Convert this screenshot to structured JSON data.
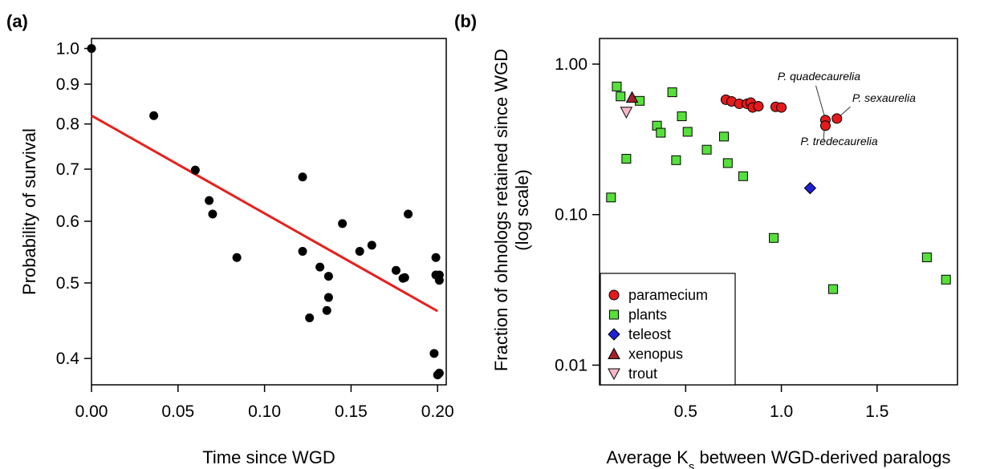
{
  "chart_data": [
    {
      "panel_label": "(a)",
      "type": "scatter",
      "xlabel": "Time since WGD",
      "ylabel": "Probability of survival",
      "xlim": [
        0.0,
        0.205
      ],
      "ylim": [
        0.37,
        1.03
      ],
      "y_scale": "log",
      "x_ticks": [
        "0.00",
        "0.05",
        "0.10",
        "0.15",
        "0.20"
      ],
      "y_ticks": [
        "0.4",
        "0.5",
        "0.6",
        "0.7",
        "0.8",
        "0.9",
        "1.0"
      ],
      "point_color": "#000000",
      "fit_line": {
        "color": "#e8201c",
        "x": [
          0.0,
          0.2
        ],
        "y": [
          0.82,
          0.46
        ]
      },
      "points": [
        {
          "x": 0.0,
          "y": 1.0
        },
        {
          "x": 0.036,
          "y": 0.82
        },
        {
          "x": 0.06,
          "y": 0.698
        },
        {
          "x": 0.068,
          "y": 0.638
        },
        {
          "x": 0.07,
          "y": 0.613
        },
        {
          "x": 0.084,
          "y": 0.539
        },
        {
          "x": 0.122,
          "y": 0.684
        },
        {
          "x": 0.122,
          "y": 0.549
        },
        {
          "x": 0.126,
          "y": 0.451
        },
        {
          "x": 0.132,
          "y": 0.524
        },
        {
          "x": 0.137,
          "y": 0.51
        },
        {
          "x": 0.137,
          "y": 0.479
        },
        {
          "x": 0.136,
          "y": 0.461
        },
        {
          "x": 0.145,
          "y": 0.596
        },
        {
          "x": 0.155,
          "y": 0.549
        },
        {
          "x": 0.162,
          "y": 0.559
        },
        {
          "x": 0.176,
          "y": 0.519
        },
        {
          "x": 0.18,
          "y": 0.507
        },
        {
          "x": 0.181,
          "y": 0.508
        },
        {
          "x": 0.183,
          "y": 0.613
        },
        {
          "x": 0.199,
          "y": 0.539
        },
        {
          "x": 0.199,
          "y": 0.512
        },
        {
          "x": 0.201,
          "y": 0.512
        },
        {
          "x": 0.201,
          "y": 0.504
        },
        {
          "x": 0.198,
          "y": 0.406
        },
        {
          "x": 0.201,
          "y": 0.383
        },
        {
          "x": 0.2,
          "y": 0.381
        }
      ]
    },
    {
      "panel_label": "(b)",
      "type": "scatter",
      "xlabel_main": "Average K",
      "xlabel_sub": "s",
      "xlabel_tail": " between WGD-derived paralogs",
      "ylabel_line1": "Fraction of ohnologs retained since WGD",
      "ylabel_line2": "(log scale)",
      "xlim": [
        0.05,
        1.92
      ],
      "ylim": [
        0.0074,
        1.48
      ],
      "y_scale": "log",
      "x_ticks": [
        "0.5",
        "1.0",
        "1.5"
      ],
      "y_ticks": [
        "0.01",
        "0.10",
        "1.00"
      ],
      "series": [
        {
          "name": "paramecium",
          "marker": "circle",
          "color": "#e41a1c",
          "points": [
            {
              "x": 0.71,
              "y": 0.58
            },
            {
              "x": 0.74,
              "y": 0.565
            },
            {
              "x": 0.78,
              "y": 0.545
            },
            {
              "x": 0.82,
              "y": 0.545
            },
            {
              "x": 0.84,
              "y": 0.555
            },
            {
              "x": 0.85,
              "y": 0.515
            },
            {
              "x": 0.88,
              "y": 0.525
            },
            {
              "x": 0.97,
              "y": 0.52
            },
            {
              "x": 1.0,
              "y": 0.515
            },
            {
              "x": 1.23,
              "y": 0.425
            },
            {
              "x": 1.23,
              "y": 0.39
            },
            {
              "x": 1.29,
              "y": 0.435
            }
          ]
        },
        {
          "name": "plants",
          "marker": "square",
          "color": "#55e03a",
          "points": [
            {
              "x": 0.11,
              "y": 0.13
            },
            {
              "x": 0.14,
              "y": 0.71
            },
            {
              "x": 0.16,
              "y": 0.61
            },
            {
              "x": 0.19,
              "y": 0.235
            },
            {
              "x": 0.26,
              "y": 0.57
            },
            {
              "x": 0.35,
              "y": 0.39
            },
            {
              "x": 0.37,
              "y": 0.35
            },
            {
              "x": 0.43,
              "y": 0.65
            },
            {
              "x": 0.45,
              "y": 0.23
            },
            {
              "x": 0.48,
              "y": 0.45
            },
            {
              "x": 0.51,
              "y": 0.355
            },
            {
              "x": 0.61,
              "y": 0.27
            },
            {
              "x": 0.7,
              "y": 0.33
            },
            {
              "x": 0.72,
              "y": 0.22
            },
            {
              "x": 0.8,
              "y": 0.18
            },
            {
              "x": 0.96,
              "y": 0.07
            },
            {
              "x": 1.27,
              "y": 0.032
            },
            {
              "x": 1.76,
              "y": 0.052
            },
            {
              "x": 1.86,
              "y": 0.037
            }
          ]
        },
        {
          "name": "teleost",
          "marker": "diamond",
          "color": "#1f1fd6",
          "points": [
            {
              "x": 1.15,
              "y": 0.15
            }
          ]
        },
        {
          "name": "xenopus",
          "marker": "triangle-up",
          "color": "#a0202a",
          "points": [
            {
              "x": 0.22,
              "y": 0.6
            }
          ]
        },
        {
          "name": "trout",
          "marker": "triangle-down",
          "color": "#f7b6c7",
          "points": [
            {
              "x": 0.19,
              "y": 0.48
            }
          ]
        }
      ],
      "annotations": [
        {
          "text": "P. quadecaurelia",
          "label_x": 0.98,
          "label_y": 0.78,
          "point_x": 1.23,
          "point_y": 0.425
        },
        {
          "text": "P. sexaurelia",
          "label_x": 1.37,
          "label_y": 0.56,
          "point_x": 1.29,
          "point_y": 0.435
        },
        {
          "text": "P. tredecaurelia",
          "label_x": 1.1,
          "label_y": 0.29,
          "point_x": 1.23,
          "point_y": 0.39
        }
      ],
      "legend_position": "bottom-left"
    }
  ]
}
